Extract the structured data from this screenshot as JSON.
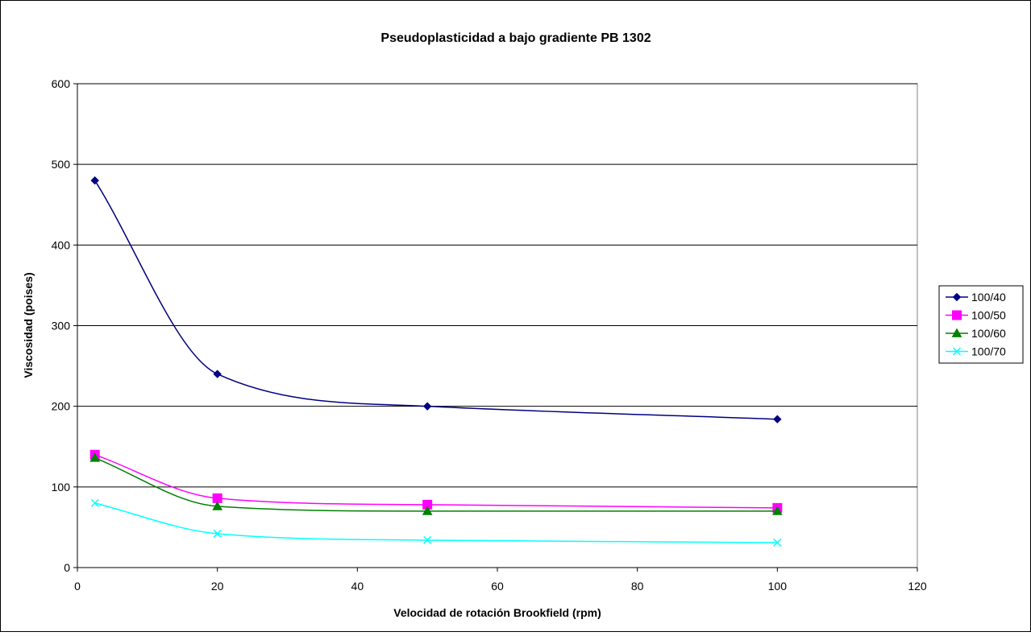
{
  "chart_data": {
    "type": "line",
    "title": "Pseudoplasticidad a bajo gradiente PB 1302",
    "xlabel": "Velocidad de rotación Brookfield (rpm)",
    "ylabel": "Viscosidad (poises)",
    "xlim": [
      0,
      120
    ],
    "ylim": [
      0,
      600
    ],
    "x_ticks": [
      "0",
      "20",
      "40",
      "60",
      "80",
      "100",
      "120"
    ],
    "y_ticks": [
      "0",
      "100",
      "200",
      "300",
      "400",
      "500",
      "600"
    ],
    "x_tick_values": [
      0,
      20,
      40,
      60,
      80,
      100,
      120
    ],
    "y_tick_values": [
      0,
      100,
      200,
      300,
      400,
      500,
      600
    ],
    "grid": "horizontal",
    "smoothed": true,
    "legend_position": "right",
    "x": [
      2.5,
      20,
      50,
      100
    ],
    "series": [
      {
        "name": "100/40",
        "values": [
          480,
          240,
          200,
          184
        ],
        "color": "#000080",
        "marker": "diamond"
      },
      {
        "name": "100/50",
        "values": [
          140,
          86,
          78,
          74
        ],
        "color": "#FF00FF",
        "marker": "square"
      },
      {
        "name": "100/60",
        "values": [
          136,
          76,
          70,
          70
        ],
        "color": "#008000",
        "marker": "triangle"
      },
      {
        "name": "100/70",
        "values": [
          80,
          42,
          34,
          31
        ],
        "color": "#00FFFF",
        "marker": "x"
      }
    ]
  }
}
